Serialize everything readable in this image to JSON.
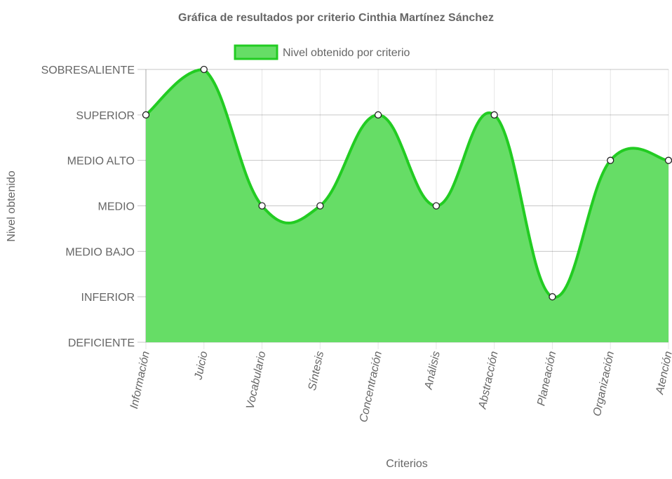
{
  "chart_data": {
    "type": "area",
    "title": "Gráfica de resultados por criterio Cinthia Martínez Sánchez",
    "xlabel": "Criterios",
    "ylabel": "Nivel obtenido",
    "categories": [
      "Información",
      "Juicio",
      "Vocabulario",
      "Síntesis",
      "Concentración",
      "Análisis",
      "Abstracción",
      "Planeación",
      "Organización",
      "Atención"
    ],
    "y_levels": [
      "DEFICIENTE",
      "INFERIOR",
      "MEDIO BAJO",
      "MEDIO",
      "MEDIO ALTO",
      "SUPERIOR",
      "SOBRESALIENTE"
    ],
    "ylim": [
      0,
      6
    ],
    "series": [
      {
        "name": "Nivel obtenido por criterio",
        "values": [
          5,
          6,
          3,
          3,
          5,
          3,
          5,
          1,
          4,
          4
        ],
        "line_color": "#22cc22",
        "fill_color": "#66dd66"
      }
    ],
    "legend_position": "top",
    "grid": true
  }
}
